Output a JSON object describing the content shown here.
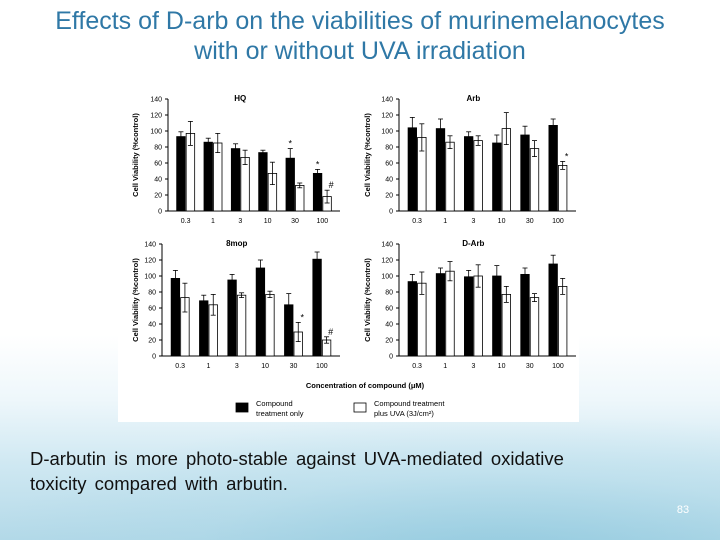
{
  "slide": {
    "title_line1": "Effects of D-arb on the viabilities of murinemelanocytes",
    "title_line2": "with or without UVA irradiation",
    "caption_line1": "D-arbutin is more photo-stable against UVA-mediated oxidative",
    "caption_line2": "toxicity compared with arbutin.",
    "page_number": "83"
  },
  "figure": {
    "x_axis_label": "Concentration of compound (μM)",
    "legend": [
      {
        "label_line1": "Compound",
        "label_line2": "treatment only",
        "fill": "#000000"
      },
      {
        "label_line1": "Compound treatment",
        "label_line2": "plus UVA (3J/cm²)",
        "fill": "#ffffff"
      }
    ],
    "colors": {
      "compound_only": "#000000",
      "plus_uva": "#ffffff",
      "title": "#2f78a6"
    }
  },
  "chart_data": [
    {
      "type": "bar",
      "title": "HQ",
      "ylabel": "Cell Viability (%control)",
      "ylim": [
        0,
        140
      ],
      "yticks": [
        0,
        20,
        40,
        60,
        80,
        100,
        120,
        140
      ],
      "categories": [
        "0.3",
        "1",
        "3",
        "10",
        "30",
        "100"
      ],
      "series": [
        {
          "name": "Compound treatment only",
          "values": [
            93,
            86,
            78,
            73,
            66,
            47
          ],
          "errors": [
            6,
            5,
            6,
            3,
            12,
            5
          ]
        },
        {
          "name": "Compound treatment plus UVA (3J/cm²)",
          "values": [
            97,
            85,
            67,
            47,
            32,
            18
          ],
          "errors": [
            15,
            12,
            9,
            14,
            3,
            8
          ]
        }
      ],
      "annotations": [
        {
          "category": "30",
          "series": 0,
          "text": "*"
        },
        {
          "category": "100",
          "series": 0,
          "text": "*"
        },
        {
          "category": "100",
          "series": 1,
          "text": "#"
        }
      ]
    },
    {
      "type": "bar",
      "title": "Arb",
      "ylabel": "Cell Viability (%control)",
      "ylim": [
        0,
        140
      ],
      "yticks": [
        0,
        20,
        40,
        60,
        80,
        100,
        120,
        140
      ],
      "categories": [
        "0.3",
        "1",
        "3",
        "10",
        "30",
        "100"
      ],
      "series": [
        {
          "name": "Compound treatment only",
          "values": [
            104,
            103,
            93,
            85,
            95,
            107
          ],
          "errors": [
            13,
            12,
            6,
            10,
            11,
            8
          ]
        },
        {
          "name": "Compound treatment plus UVA (3J/cm²)",
          "values": [
            92,
            86,
            88,
            103,
            78,
            57
          ],
          "errors": [
            17,
            8,
            6,
            20,
            10,
            5
          ]
        }
      ],
      "annotations": [
        {
          "category": "100",
          "series": 1,
          "text": "*"
        }
      ]
    },
    {
      "type": "bar",
      "title": "8mop",
      "ylabel": "Cell Viability (%control)",
      "ylim": [
        0,
        140
      ],
      "yticks": [
        0,
        20,
        40,
        60,
        80,
        100,
        120,
        140
      ],
      "categories": [
        "0.3",
        "1",
        "3",
        "10",
        "30",
        "100"
      ],
      "series": [
        {
          "name": "Compound treatment only",
          "values": [
            97,
            69,
            95,
            110,
            64,
            121
          ],
          "errors": [
            10,
            7,
            7,
            10,
            14,
            9
          ]
        },
        {
          "name": "Compound treatment plus UVA (3J/cm²)",
          "values": [
            73,
            64,
            76,
            77,
            30,
            20
          ],
          "errors": [
            18,
            13,
            3,
            4,
            12,
            4
          ]
        }
      ],
      "annotations": [
        {
          "category": "30",
          "series": 1,
          "text": "*"
        },
        {
          "category": "100",
          "series": 1,
          "text": "#"
        }
      ]
    },
    {
      "type": "bar",
      "title": "D-Arb",
      "ylabel": "Cell Viability (%control)",
      "ylim": [
        0,
        140
      ],
      "yticks": [
        0,
        20,
        40,
        60,
        80,
        100,
        120,
        140
      ],
      "categories": [
        "0.3",
        "1",
        "3",
        "10",
        "30",
        "100"
      ],
      "series": [
        {
          "name": "Compound treatment only",
          "values": [
            93,
            103,
            99,
            100,
            102,
            115
          ],
          "errors": [
            9,
            7,
            8,
            13,
            8,
            11
          ]
        },
        {
          "name": "Compound treatment plus UVA (3J/cm²)",
          "values": [
            91,
            106,
            100,
            77,
            73,
            87
          ],
          "errors": [
            14,
            12,
            14,
            10,
            5,
            10
          ]
        }
      ],
      "annotations": []
    }
  ]
}
